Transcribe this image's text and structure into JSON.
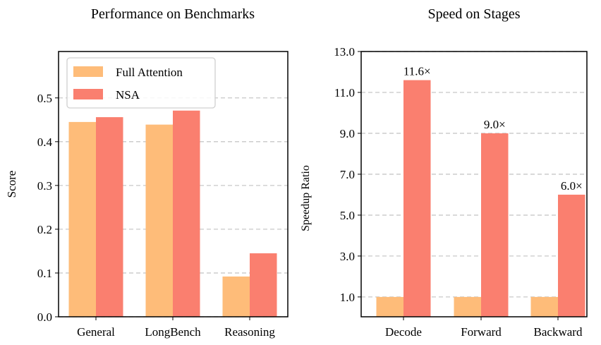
{
  "colors": {
    "full_attention": "#FEBC79",
    "nsa": "#FA7F6F"
  },
  "chart_data": [
    {
      "type": "bar",
      "title": "Performance on Benchmarks",
      "xlabel": "",
      "ylabel": "Score",
      "categories": [
        "General",
        "LongBench",
        "Reasoning"
      ],
      "series": [
        {
          "name": "Full Attention",
          "values": [
            0.445,
            0.439,
            0.092
          ]
        },
        {
          "name": "NSA",
          "values": [
            0.456,
            0.471,
            0.145
          ]
        }
      ],
      "ylim": [
        0,
        0.606
      ],
      "yticks": [
        "0.0",
        "0.1",
        "0.2",
        "0.3",
        "0.4",
        "0.5"
      ],
      "grid": "horizontal dashed",
      "legend": "top-left"
    },
    {
      "type": "bar",
      "title": "Speed on Stages",
      "xlabel": "",
      "ylabel": "Speedup Ratio",
      "categories": [
        "Decode",
        "Forward",
        "Backward"
      ],
      "series": [
        {
          "values": [
            1.0,
            1.0,
            1.0
          ]
        },
        {
          "values": [
            11.6,
            9.0,
            6.0
          ]
        }
      ],
      "data_labels": [
        "11.6×",
        "9.0×",
        "6.0×"
      ],
      "ylim": [
        0.03,
        13.0
      ],
      "yticks": [
        "1.0",
        "3.0",
        "5.0",
        "7.0",
        "9.0",
        "11.0",
        "13.0"
      ],
      "grid": "horizontal dashed"
    }
  ]
}
